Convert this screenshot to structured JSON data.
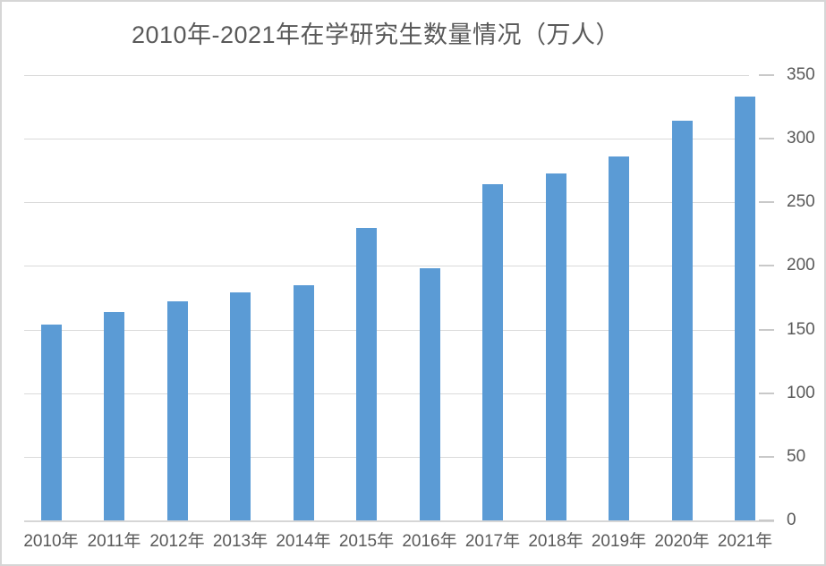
{
  "chart_data": {
    "type": "bar",
    "title": "2010年-2021年在学研究生数量情况（万人）",
    "categories": [
      "2010年",
      "2011年",
      "2012年",
      "2013年",
      "2014年",
      "2015年",
      "2016年",
      "2017年",
      "2018年",
      "2019年",
      "2020年",
      "2021年"
    ],
    "values": [
      154,
      164,
      172,
      179,
      185,
      230,
      198,
      264,
      273,
      286,
      314,
      333
    ],
    "unit": "万人",
    "xlabel": "",
    "ylabel": "",
    "ylim": [
      0,
      350
    ],
    "yticks": [
      0,
      50,
      100,
      150,
      200,
      250,
      300,
      350
    ],
    "y_axis_side": "right",
    "grid": true,
    "legend": "none",
    "colors": {
      "bar": "#5b9bd5",
      "gridline": "#dadada",
      "axis_line": "#d6d6d6",
      "tick_mark": "#c9c9c9",
      "text": "#595959",
      "background": "#ffffff",
      "frame_border": "#d6d6d6"
    }
  }
}
